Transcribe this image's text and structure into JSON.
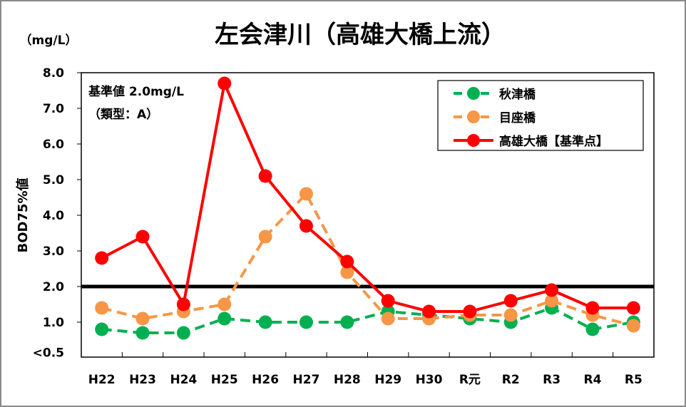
{
  "chart_data": {
    "type": "line",
    "title": "左会津川（高雄大橋上流）",
    "unit_label": "（mg/L）",
    "ylabel": "BOD75%値",
    "xlabel": "",
    "categories": [
      "H22",
      "H23",
      "H24",
      "H25",
      "H26",
      "H27",
      "H28",
      "H29",
      "H30",
      "R元",
      "R2",
      "R3",
      "R4",
      "R5"
    ],
    "ylim": [
      0.0,
      8.0
    ],
    "yticks": [
      {
        "value": 8.0,
        "label": "8.0"
      },
      {
        "value": 7.0,
        "label": "7.0"
      },
      {
        "value": 6.0,
        "label": "6.0"
      },
      {
        "value": 5.0,
        "label": "5.0"
      },
      {
        "value": 4.0,
        "label": "4.0"
      },
      {
        "value": 3.0,
        "label": "3.0"
      },
      {
        "value": 2.0,
        "label": "2.0"
      },
      {
        "value": 1.0,
        "label": "1.0"
      },
      {
        "value": 0.15,
        "label": "<0.5"
      }
    ],
    "grid": false,
    "legend_position": "top-right",
    "reference_line": {
      "value": 2.0,
      "color": "#000000"
    },
    "annotations": [
      "基準値  2.0mg/L",
      "（類型：A）"
    ],
    "series": [
      {
        "name": "秋津橋",
        "color": "#00b050",
        "dashed": true,
        "values": [
          0.8,
          0.7,
          0.7,
          1.1,
          1.0,
          1.0,
          1.0,
          1.3,
          1.2,
          1.1,
          1.0,
          1.4,
          0.8,
          1.0
        ]
      },
      {
        "name": "目座橋",
        "color": "#f79646",
        "dashed": true,
        "values": [
          1.4,
          1.1,
          1.3,
          1.5,
          3.4,
          4.6,
          2.4,
          1.1,
          1.1,
          1.2,
          1.2,
          1.6,
          1.2,
          0.9
        ]
      },
      {
        "name": "高雄大橋【基準点】",
        "color": "#ff0000",
        "dashed": false,
        "values": [
          2.8,
          3.4,
          1.5,
          7.7,
          5.1,
          3.7,
          2.7,
          1.6,
          1.3,
          1.3,
          1.6,
          1.9,
          1.4,
          1.4
        ]
      }
    ]
  }
}
